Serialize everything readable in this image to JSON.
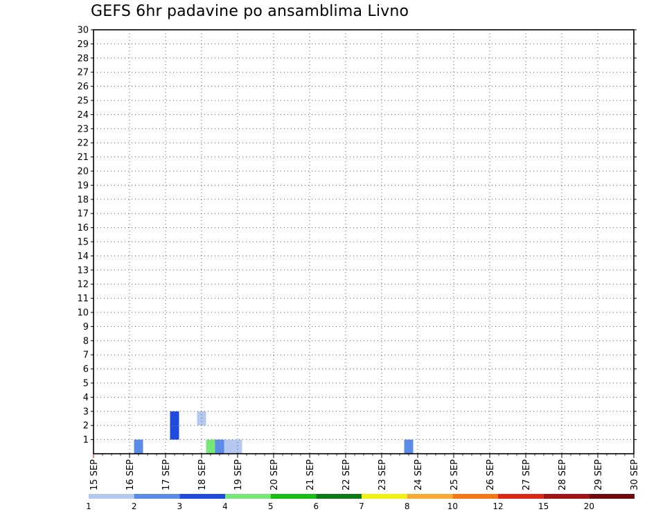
{
  "chart_data": {
    "type": "heatmap",
    "title": "GEFS 6hr padavine po ansamblima Livno",
    "x_tick_labels": [
      "15 SEP",
      "16 SEP",
      "17 SEP",
      "18 SEP",
      "19 SEP",
      "20 SEP",
      "21 SEP",
      "22 SEP",
      "23 SEP",
      "24 SEP",
      "25 SEP",
      "26 SEP",
      "27 SEP",
      "28 SEP",
      "29 SEP",
      "30 SEP"
    ],
    "x_range": [
      "15 SEP 00",
      "30 SEP 00"
    ],
    "time_step_hours": 6,
    "y_tick_labels": [
      "1",
      "2",
      "3",
      "4",
      "5",
      "6",
      "7",
      "8",
      "9",
      "10",
      "11",
      "12",
      "13",
      "14",
      "15",
      "16",
      "17",
      "18",
      "19",
      "20",
      "21",
      "22",
      "23",
      "24",
      "25",
      "26",
      "27",
      "28",
      "29",
      "30"
    ],
    "y_range": [
      0,
      30
    ],
    "grid": true,
    "colorbar": {
      "position": "bottom",
      "labels": [
        "1",
        "2",
        "3",
        "4",
        "5",
        "6",
        "7",
        "8",
        "10",
        "12",
        "15",
        "20"
      ],
      "bounds": [
        1,
        2,
        3,
        4,
        5,
        6,
        7,
        8,
        10,
        12,
        15,
        20
      ],
      "colors": [
        "#b4c8f0",
        "#5a8ce6",
        "#1e4bdc",
        "#78e678",
        "#14be14",
        "#0a7814",
        "#f0f014",
        "#faaa32",
        "#f57814",
        "#dc2814",
        "#a01414",
        "#6e0a0a"
      ]
    },
    "cells": [
      {
        "t": "16 SEP 06",
        "member": 0,
        "value": 2.5
      },
      {
        "t": "17 SEP 06",
        "member": 1,
        "value": 3.5
      },
      {
        "t": "17 SEP 06",
        "member": 2,
        "value": 3.5
      },
      {
        "t": "18 SEP 00",
        "member": 2,
        "value": 1.5
      },
      {
        "t": "18 SEP 06",
        "member": 0,
        "value": 4.5
      },
      {
        "t": "18 SEP 12",
        "member": 0,
        "value": 2.5
      },
      {
        "t": "18 SEP 18",
        "member": 0,
        "value": 1.5
      },
      {
        "t": "19 SEP 00",
        "member": 0,
        "value": 1.5
      },
      {
        "t": "23 SEP 18",
        "member": 0,
        "value": 2.5
      }
    ]
  }
}
